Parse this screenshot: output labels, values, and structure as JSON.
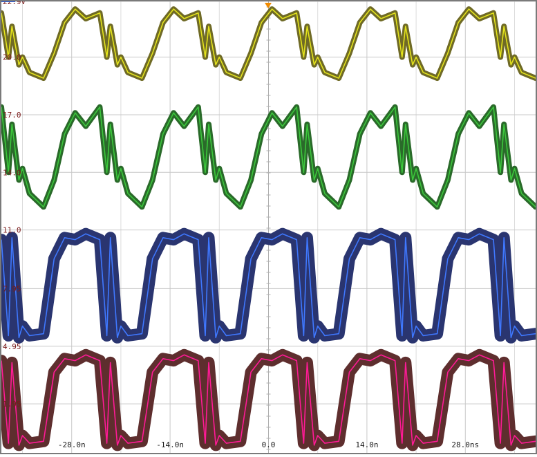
{
  "chart_data": {
    "type": "line",
    "title": "",
    "xlabel": "",
    "ylabel": "",
    "x_unit": "ns",
    "xlim": [
      -38.0,
      38.0
    ],
    "x_ticks": [
      -28.0,
      -14.0,
      0.0,
      14.0,
      28.0
    ],
    "x_tick_labels": [
      "-28.0n",
      "-14.0n",
      "0.0",
      "14.0n",
      "28.0ns"
    ],
    "y_unit": "V",
    "y_tick_labels": [
      "22.9V",
      "20.0",
      "17.0",
      "14.0",
      "11.0",
      "7.95",
      "4.95",
      "1.95"
    ],
    "y_ticks": [
      22.9,
      20.0,
      17.0,
      14.0,
      11.0,
      7.95,
      4.95,
      1.95
    ],
    "ylim": [
      -0.6,
      22.9
    ],
    "grid": true,
    "period_ns": 14.0,
    "series": [
      {
        "color": "#e4e41c",
        "envelope_color": "#6f6a26",
        "x": [
          -37.0,
          -35.5,
          -34.0,
          -32.0,
          -30.5,
          -29.0,
          -27.5,
          -26.0,
          -24.0,
          -22.5,
          -21.0
        ],
        "values": [
          20.0,
          19.6,
          19.2,
          18.9,
          20.2,
          21.8,
          22.5,
          22.0,
          22.3,
          21.6,
          20.0
        ]
      },
      {
        "color": "#3cc83c",
        "envelope_color": "#2a6a2a",
        "x": [
          -37.0,
          -35.5,
          -34.0,
          -32.0,
          -30.5,
          -29.0,
          -27.5,
          -26.0,
          -24.0,
          -22.5,
          -21.0
        ],
        "values": [
          14.0,
          13.6,
          12.9,
          12.2,
          13.6,
          16.0,
          17.1,
          16.4,
          17.4,
          16.5,
          14.2
        ]
      },
      {
        "color": "#3f78ff",
        "envelope_color": "#2a3570",
        "x": [
          -37.0,
          -35.5,
          -34.0,
          -32.0,
          -30.5,
          -29.0,
          -27.5,
          -26.0,
          -24.0,
          -22.5,
          -21.0
        ],
        "values": [
          5.5,
          5.4,
          5.5,
          5.6,
          9.5,
          10.6,
          10.5,
          10.8,
          10.5,
          10.6,
          6.0
        ]
      },
      {
        "color": "#ff1a96",
        "envelope_color": "#5e2e2e",
        "x": [
          -37.0,
          -35.5,
          -34.0,
          -32.0,
          -30.5,
          -29.0,
          -27.5,
          -26.0,
          -24.0,
          -22.5,
          -21.0
        ],
        "values": [
          -0.1,
          -0.2,
          -0.1,
          0.0,
          3.6,
          4.3,
          4.2,
          4.5,
          4.2,
          4.1,
          0.3
        ]
      }
    ]
  }
}
